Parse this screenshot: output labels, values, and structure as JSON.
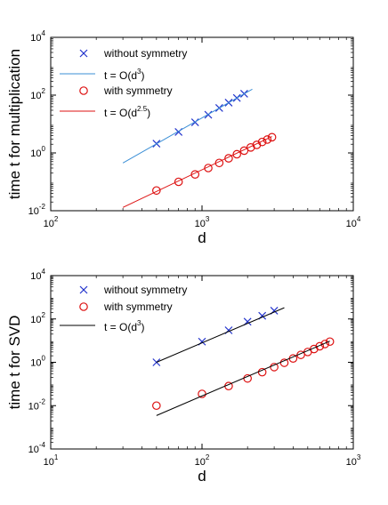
{
  "chart_data": [
    {
      "type": "scatter",
      "xlabel": "d",
      "ylabel": "time t for multiplication",
      "x_scale": "log",
      "y_scale": "log",
      "xlim": [
        100,
        10000
      ],
      "ylim": [
        0.01,
        10000
      ],
      "x_ticks": [
        {
          "base": "10",
          "exp": "2",
          "value": 100
        },
        {
          "base": "10",
          "exp": "3",
          "value": 1000
        },
        {
          "base": "10",
          "exp": "4",
          "value": 10000
        }
      ],
      "y_ticks": [
        {
          "base": "10",
          "exp": "-2",
          "value": 0.01
        },
        {
          "base": "10",
          "exp": "0",
          "value": 1
        },
        {
          "base": "10",
          "exp": "2",
          "value": 100
        },
        {
          "base": "10",
          "exp": "4",
          "value": 10000
        }
      ],
      "grid": false,
      "legend_position": "top-left",
      "legend": [
        {
          "label": "without symmetry",
          "marker": "x",
          "color": "#2233cc"
        },
        {
          "label": "t = O(d",
          "sup": "3",
          "suffix": ")",
          "line_color": "#3b8fd6"
        },
        {
          "label": "with symmetry",
          "marker": "o",
          "color": "#dd1111"
        },
        {
          "label": "t = O(d",
          "sup": "2.5",
          "suffix": ")",
          "line_color": "#dd1111"
        }
      ],
      "series": [
        {
          "name": "without symmetry",
          "marker": "x",
          "color": "#2233cc",
          "x": [
            500,
            700,
            900,
            1100,
            1300,
            1500,
            1700,
            1900
          ],
          "y": [
            2.1,
            5.3,
            11.5,
            21,
            36,
            55,
            80,
            112
          ]
        },
        {
          "name": "t = O(d^3)",
          "kind": "line",
          "color": "#3b8fd6",
          "x": [
            300,
            2150
          ],
          "y": [
            0.45,
            160
          ]
        },
        {
          "name": "with symmetry",
          "marker": "o",
          "color": "#dd1111",
          "x": [
            500,
            700,
            900,
            1100,
            1300,
            1500,
            1700,
            1900,
            2100,
            2300,
            2500,
            2700,
            2900
          ],
          "y": [
            0.05,
            0.1,
            0.18,
            0.3,
            0.45,
            0.65,
            0.9,
            1.2,
            1.55,
            1.9,
            2.4,
            2.9,
            3.5
          ]
        },
        {
          "name": "t = O(d^2.5)",
          "kind": "line",
          "color": "#dd1111",
          "x": [
            300,
            2900
          ],
          "y": [
            0.013,
            3.7
          ]
        }
      ]
    },
    {
      "type": "scatter",
      "xlabel": "d",
      "ylabel": "time t for SVD",
      "x_scale": "log",
      "y_scale": "log",
      "xlim": [
        10,
        1000
      ],
      "ylim": [
        0.0001,
        10000
      ],
      "x_ticks": [
        {
          "base": "10",
          "exp": "1",
          "value": 10
        },
        {
          "base": "10",
          "exp": "2",
          "value": 100
        },
        {
          "base": "10",
          "exp": "3",
          "value": 1000
        }
      ],
      "y_ticks": [
        {
          "base": "10",
          "exp": "-4",
          "value": 0.0001
        },
        {
          "base": "10",
          "exp": "-2",
          "value": 0.01
        },
        {
          "base": "10",
          "exp": "0",
          "value": 1
        },
        {
          "base": "10",
          "exp": "2",
          "value": 100
        },
        {
          "base": "10",
          "exp": "4",
          "value": 10000
        }
      ],
      "grid": false,
      "legend_position": "top-left",
      "legend": [
        {
          "label": "without symmetry",
          "marker": "x",
          "color": "#2233cc"
        },
        {
          "label": "with symmetry",
          "marker": "o",
          "color": "#dd1111"
        },
        {
          "label": "t = O(d",
          "sup": "3",
          "suffix": ")",
          "line_color": "#000000"
        }
      ],
      "series": [
        {
          "name": "without symmetry",
          "marker": "x",
          "color": "#2233cc",
          "x": [
            50,
            100,
            150,
            200,
            250,
            300
          ],
          "y": [
            1,
            9,
            30,
            75,
            140,
            240
          ]
        },
        {
          "name": "t = O(d^3) upper",
          "kind": "line",
          "color": "#000000",
          "x": [
            50,
            350
          ],
          "y": [
            1.0,
            330
          ]
        },
        {
          "name": "with symmetry",
          "marker": "o",
          "color": "#dd1111",
          "x": [
            50,
            100,
            150,
            200,
            250,
            300,
            350,
            400,
            450,
            500,
            550,
            600,
            650,
            700
          ],
          "y": [
            0.01,
            0.035,
            0.08,
            0.18,
            0.35,
            0.6,
            0.95,
            1.5,
            2.2,
            3.0,
            4.1,
            5.5,
            7.0,
            9.0
          ]
        },
        {
          "name": "t = O(d^3) lower",
          "kind": "line",
          "color": "#000000",
          "x": [
            50,
            700
          ],
          "y": [
            0.0035,
            9.5
          ]
        }
      ]
    }
  ]
}
